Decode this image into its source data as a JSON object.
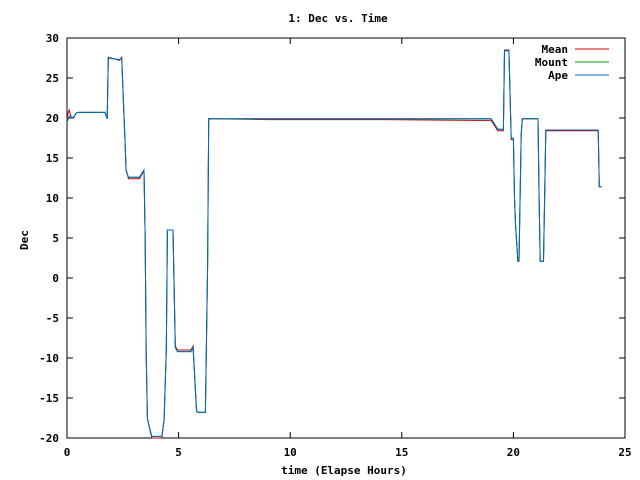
{
  "chart_data": {
    "type": "line",
    "title": "1: Dec vs. Time",
    "xlabel": "time (Elapse Hours)",
    "ylabel": "Dec",
    "xlim": [
      0,
      25
    ],
    "ylim": [
      -20,
      30
    ],
    "x_ticks": [
      "0",
      "5",
      "10",
      "15",
      "20",
      "25"
    ],
    "y_ticks": [
      "-20",
      "-15",
      "-10",
      "-5",
      "0",
      "5",
      "10",
      "15",
      "20",
      "25",
      "30"
    ],
    "grid": false,
    "legend_position": "top-right",
    "series": [
      {
        "name": "Mean",
        "color": "#cc0000",
        "x": [
          0.0,
          0.05,
          0.1,
          0.15,
          0.2,
          0.3,
          0.4,
          0.5,
          1.7,
          1.8,
          1.85,
          2.35,
          2.45,
          2.6,
          2.65,
          2.75,
          3.25,
          3.45,
          3.5,
          3.55,
          3.6,
          3.65,
          3.8,
          3.9,
          4.25,
          4.35,
          4.45,
          4.5,
          4.55,
          4.75,
          4.8,
          4.85,
          4.95,
          5.55,
          5.65,
          5.8,
          5.85,
          6.2,
          6.3,
          6.35,
          9.0,
          14.2,
          18.2,
          18.9,
          19.0,
          19.3,
          19.4,
          19.55,
          19.6,
          19.8,
          19.9,
          20.0,
          20.05,
          20.1,
          20.2,
          20.25,
          20.35,
          20.4,
          20.5,
          20.5,
          21.1,
          21.15,
          21.2,
          21.35,
          21.45,
          21.5,
          23.8,
          23.85,
          23.95
        ],
        "y": [
          19.8,
          20.6,
          21.0,
          20.5,
          20.0,
          20.0,
          20.6,
          20.7,
          20.7,
          19.9,
          27.6,
          27.2,
          27.6,
          17.0,
          13.6,
          12.4,
          12.4,
          13.4,
          5.5,
          -9.5,
          -17.5,
          -18.2,
          -20.0,
          -20.0,
          -20.0,
          -17.7,
          -9.0,
          6.0,
          6.0,
          6.0,
          -1.0,
          -8.5,
          -9.0,
          -9.0,
          -8.5,
          -16.5,
          -16.8,
          -16.8,
          1.5,
          19.9,
          19.8,
          19.8,
          19.7,
          19.7,
          19.7,
          18.4,
          18.4,
          18.4,
          28.5,
          28.5,
          17.3,
          17.3,
          10.0,
          6.5,
          2.1,
          2.1,
          18.0,
          19.9,
          19.9,
          19.9,
          19.9,
          10.0,
          2.1,
          2.1,
          18.4,
          18.4,
          18.4,
          11.4,
          11.4
        ]
      },
      {
        "name": "Mount",
        "color": "#009900",
        "x": [
          0.0,
          0.05,
          0.1,
          0.15,
          0.2,
          0.3,
          0.4,
          0.5,
          1.7,
          1.8,
          1.85,
          2.35,
          2.45,
          2.6,
          2.65,
          2.75,
          3.25,
          3.45,
          3.5,
          3.55,
          3.6,
          3.65,
          3.8,
          3.9,
          4.25,
          4.35,
          4.45,
          4.5,
          4.55,
          4.75,
          4.8,
          4.85,
          4.95,
          5.55,
          5.65,
          5.8,
          5.85,
          6.2,
          6.3,
          6.35,
          9.0,
          14.2,
          18.2,
          18.9,
          19.0,
          19.3,
          19.4,
          19.55,
          19.6,
          19.8,
          19.9,
          20.0,
          20.05,
          20.1,
          20.2,
          20.25,
          20.35,
          20.4,
          20.5,
          20.5,
          21.1,
          21.15,
          21.2,
          21.35,
          21.45,
          21.5,
          23.8,
          23.85,
          23.95
        ],
        "y": [
          19.4,
          19.9,
          20.2,
          20.3,
          20.1,
          20.1,
          20.6,
          20.7,
          20.7,
          19.9,
          27.5,
          27.3,
          27.5,
          17.2,
          13.4,
          12.6,
          12.6,
          13.5,
          5.5,
          -9.5,
          -17.5,
          -18.2,
          -19.8,
          -19.8,
          -19.8,
          -17.7,
          -9.0,
          6.0,
          6.0,
          6.0,
          -1.0,
          -8.7,
          -9.2,
          -9.2,
          -8.7,
          -16.6,
          -16.8,
          -16.8,
          1.5,
          19.9,
          19.9,
          19.9,
          19.9,
          19.9,
          19.9,
          18.6,
          18.6,
          18.6,
          28.4,
          28.4,
          17.5,
          17.5,
          10.0,
          6.5,
          2.1,
          2.1,
          18.0,
          19.9,
          19.9,
          19.9,
          19.9,
          10.0,
          2.1,
          2.1,
          18.5,
          18.5,
          18.5,
          11.4,
          11.4
        ]
      },
      {
        "name": "Ape",
        "color": "#0066cc",
        "x": [
          0.0,
          0.05,
          0.1,
          0.15,
          0.2,
          0.3,
          0.4,
          0.5,
          1.7,
          1.8,
          1.85,
          2.35,
          2.45,
          2.6,
          2.65,
          2.75,
          3.25,
          3.45,
          3.5,
          3.55,
          3.6,
          3.65,
          3.8,
          3.9,
          4.25,
          4.35,
          4.45,
          4.5,
          4.55,
          4.75,
          4.8,
          4.85,
          4.95,
          5.55,
          5.65,
          5.8,
          5.85,
          6.2,
          6.3,
          6.35,
          9.0,
          14.2,
          18.2,
          18.9,
          19.0,
          19.3,
          19.4,
          19.55,
          19.6,
          19.8,
          19.9,
          20.0,
          20.05,
          20.1,
          20.2,
          20.25,
          20.35,
          20.4,
          20.5,
          20.5,
          21.1,
          21.15,
          21.2,
          21.35,
          21.45,
          21.5,
          23.8,
          23.85,
          23.95
        ],
        "y": [
          19.4,
          19.9,
          20.2,
          20.3,
          20.1,
          20.1,
          20.6,
          20.7,
          20.7,
          19.9,
          27.5,
          27.3,
          27.5,
          17.2,
          13.4,
          12.6,
          12.6,
          13.5,
          5.5,
          -9.5,
          -17.5,
          -18.2,
          -19.8,
          -19.8,
          -19.8,
          -17.7,
          -9.0,
          6.0,
          6.0,
          6.0,
          -1.0,
          -8.7,
          -9.2,
          -9.2,
          -8.7,
          -16.6,
          -16.8,
          -16.8,
          1.5,
          19.9,
          19.9,
          19.9,
          19.9,
          19.9,
          19.9,
          18.6,
          18.6,
          18.6,
          28.4,
          28.4,
          17.5,
          17.5,
          10.0,
          6.5,
          2.1,
          2.1,
          18.0,
          19.9,
          19.9,
          19.9,
          19.9,
          10.0,
          2.1,
          2.1,
          18.5,
          18.5,
          18.5,
          11.4,
          11.4
        ]
      }
    ]
  }
}
